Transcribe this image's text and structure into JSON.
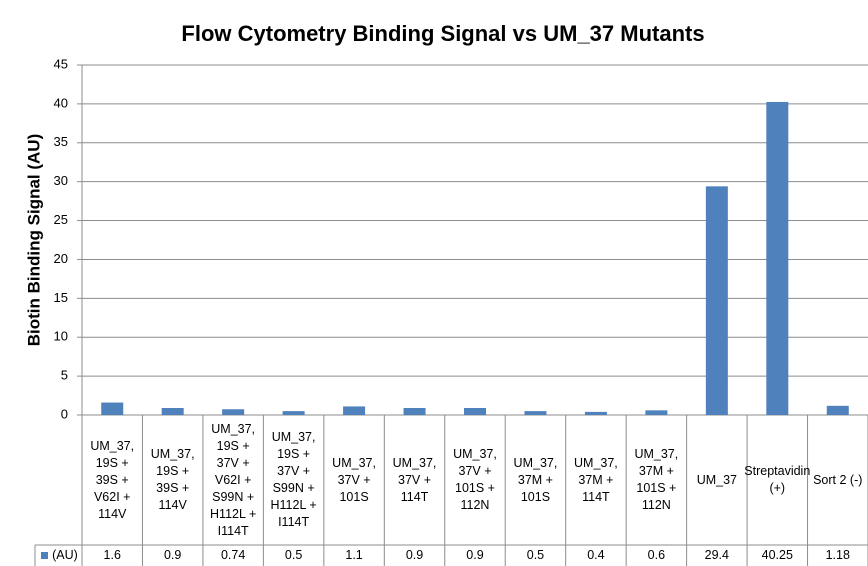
{
  "chart_data": {
    "type": "bar",
    "title": "Flow Cytometry Binding Signal vs UM_37 Mutants",
    "y_label": "Biotin Binding Signal (AU)",
    "categories": [
      "UM_37, 19S + 39S + V62I + 114V",
      "UM_37, 19S + 39S + 114V",
      "UM_37, 19S + 37V + V62I + S99N + H112L + I114T",
      "UM_37, 19S + 37V + S99N + H112L + I114T",
      "UM_37, 37V + 101S",
      "UM_37, 37V + 114T",
      "UM_37, 37V + 101S + 112N",
      "UM_37, 37M + 101S",
      "UM_37, 37M + 114T",
      "UM_37, 37M + 101S + 112N",
      "UM_37",
      "Streptavidin (+)",
      "Sort 2 (-)"
    ],
    "series": [
      {
        "name": "(AU)",
        "color": "#4f81bd",
        "values": [
          1.6,
          0.9,
          0.74,
          0.5,
          1.1,
          0.9,
          0.9,
          0.5,
          0.4,
          0.6,
          29.4,
          40.25,
          1.18
        ]
      }
    ],
    "ylim": [
      0,
      45
    ],
    "yticks": [
      0,
      5,
      10,
      15,
      20,
      25,
      30,
      35,
      40,
      45
    ],
    "grid": true,
    "data_table": true
  }
}
